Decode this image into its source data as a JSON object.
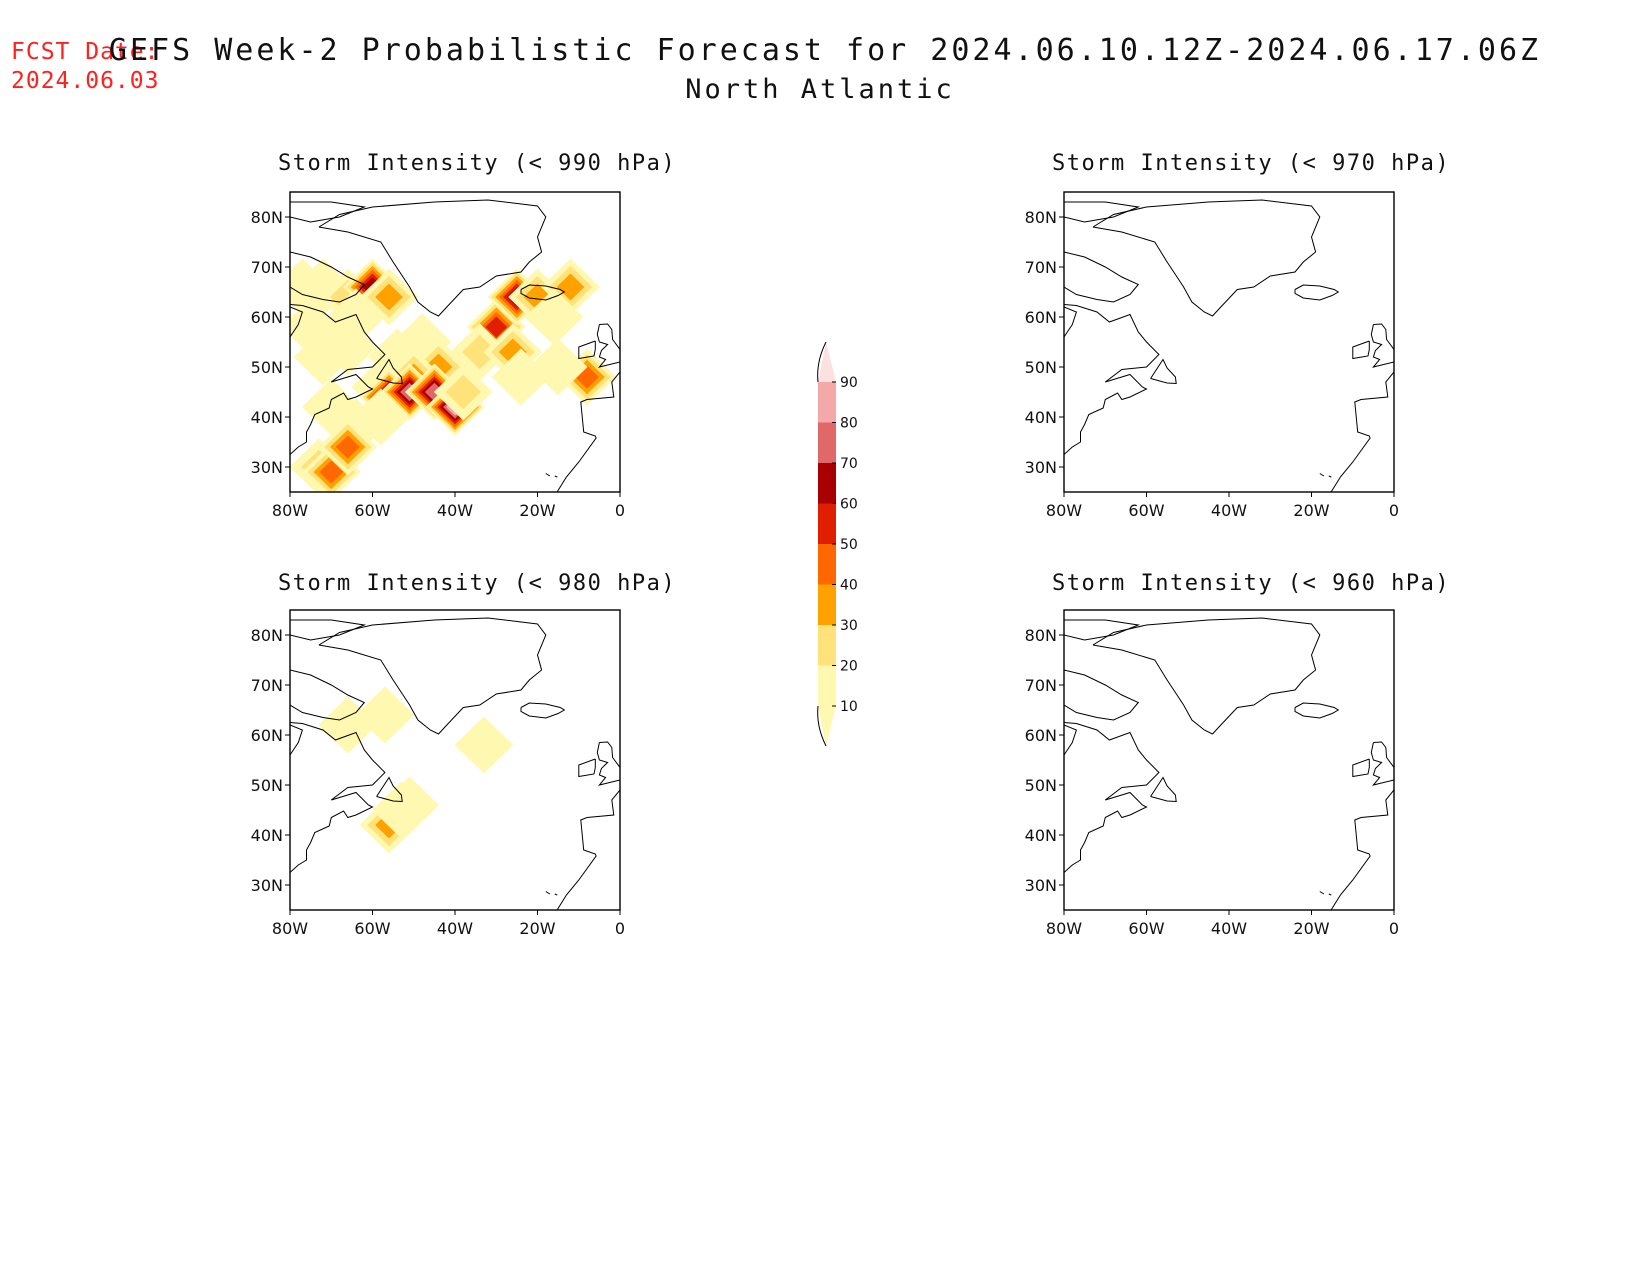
{
  "fcst": {
    "line1": "FCST Date:",
    "line2": "2024.06.03"
  },
  "title": {
    "line1": "GEFS Week-2 Probabilistic Forecast for 2024.06.10.12Z-2024.06.17.06Z",
    "line2": "North Atlantic"
  },
  "axes": {
    "lat_labels": [
      "80N",
      "70N",
      "60N",
      "50N",
      "40N",
      "30N"
    ],
    "lat_values": [
      80,
      70,
      60,
      50,
      40,
      30
    ],
    "lon_labels": [
      "80W",
      "60W",
      "40W",
      "20W",
      "0"
    ],
    "lon_values": [
      -80,
      -60,
      -40,
      -20,
      0
    ],
    "lon_range": [
      -80,
      0
    ],
    "lat_range": [
      25,
      85
    ]
  },
  "panels": [
    {
      "id": "p990",
      "title": "Storm Intensity (< 990 hPa)",
      "threshold_hPa": 990,
      "has_signal": true
    },
    {
      "id": "p970",
      "title": "Storm Intensity (< 970 hPa)",
      "threshold_hPa": 970,
      "has_signal": false
    },
    {
      "id": "p980",
      "title": "Storm Intensity (< 980 hPa)",
      "threshold_hPa": 980,
      "has_signal": true
    },
    {
      "id": "p960",
      "title": "Storm Intensity (< 960 hPa)",
      "threshold_hPa": 960,
      "has_signal": false
    }
  ],
  "colorbar": {
    "levels": [
      "10",
      "20",
      "30",
      "40",
      "50",
      "60",
      "70",
      "80",
      "90"
    ],
    "colors": [
      "#fff8b0",
      "#ffe27a",
      "#ffa200",
      "#ff6800",
      "#e01e00",
      "#a80000",
      "#e06868",
      "#f4a8a8",
      "#fde0e0"
    ]
  },
  "chart_data": [
    {
      "type": "heatmap",
      "title": "Storm Intensity (< 990 hPa)",
      "units": "%",
      "xlim": [
        -80,
        0
      ],
      "ylim": [
        25,
        85
      ],
      "cells": [
        {
          "lon": -77,
          "lat": 66,
          "p": 15
        },
        {
          "lon": -72,
          "lat": 66,
          "p": 15
        },
        {
          "lon": -66,
          "lat": 64,
          "p": 25
        },
        {
          "lon": -60,
          "lat": 66,
          "p": 65
        },
        {
          "lon": -56,
          "lat": 64,
          "p": 35
        },
        {
          "lon": -64,
          "lat": 60,
          "p": 15
        },
        {
          "lon": -75,
          "lat": 58,
          "p": 15
        },
        {
          "lon": -72,
          "lat": 52,
          "p": 12
        },
        {
          "lon": -66,
          "lat": 54,
          "p": 15
        },
        {
          "lon": -54,
          "lat": 52,
          "p": 15
        },
        {
          "lon": -48,
          "lat": 55,
          "p": 15
        },
        {
          "lon": -44,
          "lat": 50,
          "p": 35
        },
        {
          "lon": -50,
          "lat": 48,
          "p": 30
        },
        {
          "lon": -58,
          "lat": 46,
          "p": 15
        },
        {
          "lon": -56,
          "lat": 44,
          "p": 75
        },
        {
          "lon": -51,
          "lat": 45,
          "p": 70
        },
        {
          "lon": -45,
          "lat": 45,
          "p": 70
        },
        {
          "lon": -40,
          "lat": 42,
          "p": 85
        },
        {
          "lon": -38,
          "lat": 45,
          "p": 25
        },
        {
          "lon": -30,
          "lat": 58,
          "p": 55
        },
        {
          "lon": -34,
          "lat": 53,
          "p": 20
        },
        {
          "lon": -26,
          "lat": 53,
          "p": 35
        },
        {
          "lon": -25,
          "lat": 64,
          "p": 60
        },
        {
          "lon": -20,
          "lat": 64,
          "p": 30
        },
        {
          "lon": -12,
          "lat": 66,
          "p": 35
        },
        {
          "lon": -16,
          "lat": 60,
          "p": 15
        },
        {
          "lon": -8,
          "lat": 48,
          "p": 40
        },
        {
          "lon": -15,
          "lat": 50,
          "p": 15
        },
        {
          "lon": -24,
          "lat": 48,
          "p": 15
        },
        {
          "lon": -70,
          "lat": 42,
          "p": 12
        },
        {
          "lon": -64,
          "lat": 38,
          "p": 15
        },
        {
          "lon": -73,
          "lat": 30,
          "p": 20
        },
        {
          "lon": -70,
          "lat": 29,
          "p": 40
        },
        {
          "lon": -66,
          "lat": 34,
          "p": 40
        },
        {
          "lon": -58,
          "lat": 40,
          "p": 15
        }
      ]
    },
    {
      "type": "heatmap",
      "title": "Storm Intensity (< 970 hPa)",
      "units": "%",
      "xlim": [
        -80,
        0
      ],
      "ylim": [
        25,
        85
      ],
      "cells": []
    },
    {
      "type": "heatmap",
      "title": "Storm Intensity (< 980 hPa)",
      "units": "%",
      "xlim": [
        -80,
        0
      ],
      "ylim": [
        25,
        85
      ],
      "cells": [
        {
          "lon": -57,
          "lat": 64,
          "p": 12
        },
        {
          "lon": -56,
          "lat": 42,
          "p": 38
        },
        {
          "lon": -53,
          "lat": 45,
          "p": 15
        },
        {
          "lon": -51,
          "lat": 46,
          "p": 12
        },
        {
          "lon": -66,
          "lat": 62,
          "p": 12
        },
        {
          "lon": -33,
          "lat": 58,
          "p": 10
        }
      ]
    },
    {
      "type": "heatmap",
      "title": "Storm Intensity (< 960 hPa)",
      "units": "%",
      "xlim": [
        -80,
        0
      ],
      "ylim": [
        25,
        85
      ],
      "cells": []
    }
  ]
}
